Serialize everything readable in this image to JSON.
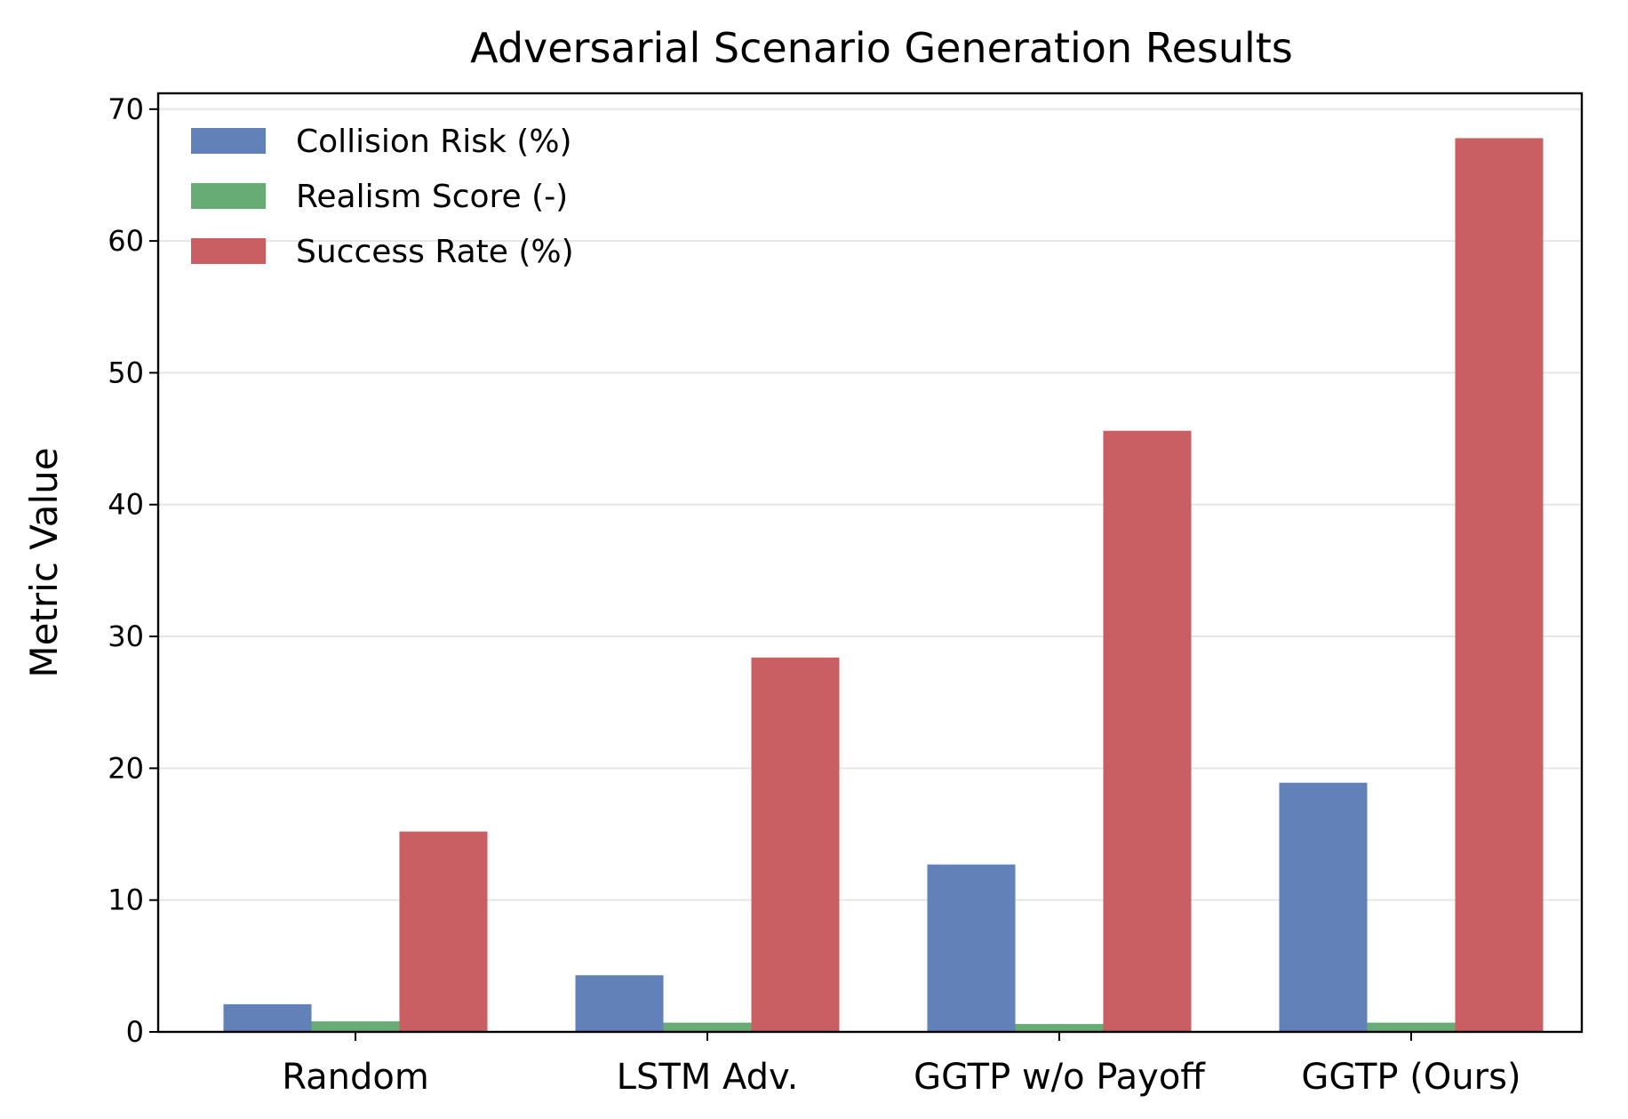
{
  "chart_data": {
    "type": "bar",
    "title": "Adversarial Scenario Generation Results",
    "xlabel": "",
    "ylabel": "Metric Value",
    "categories": [
      "Random",
      "LSTM Adv.",
      "GGTP w/o Payoff",
      "GGTP (Ours)"
    ],
    "series": [
      {
        "name": "Collision Risk (%)",
        "color": "#6181b8",
        "values": [
          2.1,
          4.3,
          12.7,
          18.9
        ]
      },
      {
        "name": "Realism Score (-)",
        "color": "#66ac74",
        "values": [
          0.8,
          0.7,
          0.6,
          0.7
        ]
      },
      {
        "name": "Success Rate (%)",
        "color": "#c95f62",
        "values": [
          15.2,
          28.4,
          45.6,
          67.8
        ]
      }
    ],
    "ylim": [
      0,
      71.2
    ],
    "yticks": [
      0,
      10,
      20,
      30,
      40,
      50,
      60,
      70
    ],
    "grid": "y",
    "legend_position": "top-left"
  }
}
